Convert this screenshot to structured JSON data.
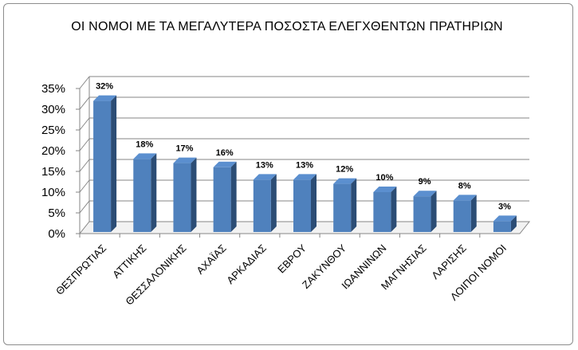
{
  "chart_data": {
    "type": "bar",
    "title": "ΟΙ ΝΟΜΟΙ ΜΕ ΤΑ ΜΕΓΑΛΥΤΕΡΑ ΠΟΣΟΣΤΑ ΕΛΕΓΧΘΕΝΤΩΝ ΠΡΑΤΗΡΙΩΝ",
    "categories": [
      "ΘΕΣΠΡΩΤΙΑΣ",
      "ΑΤΤΙΚΗΣ",
      "ΘΕΣΣΑΛΟΝΙΚΗΣ",
      "ΑΧΑΪΑΣ",
      "ΑΡΚΑΔΙΑΣ",
      "ΕΒΡΟΥ",
      "ΖΑΚΥΝΘΟΥ",
      "ΙΩΑΝΝΙΝΩΝ",
      "ΜΑΓΝΗΣΙΑΣ",
      "ΛΑΡΙΣΗΣ",
      "ΛΟΙΠΟΙ ΝΟΜΟΙ"
    ],
    "values": [
      32,
      18,
      17,
      16,
      13,
      13,
      12,
      10,
      9,
      8,
      3
    ],
    "data_labels": [
      "32%",
      "18%",
      "17%",
      "16%",
      "13%",
      "13%",
      "12%",
      "10%",
      "9%",
      "8%",
      "3%"
    ],
    "y_ticks": [
      "0%",
      "5%",
      "10%",
      "15%",
      "20%",
      "25%",
      "30%",
      "35%"
    ],
    "ylim": [
      0,
      35
    ],
    "xlabel": "",
    "ylabel": "",
    "grid": true,
    "legend": "none",
    "colors": {
      "bar_front": "#4f81bd",
      "bar_side": "#2c4d75",
      "bar_top": "#5b8fcf",
      "grid": "#868686",
      "floor": "#c0c0c0"
    }
  }
}
